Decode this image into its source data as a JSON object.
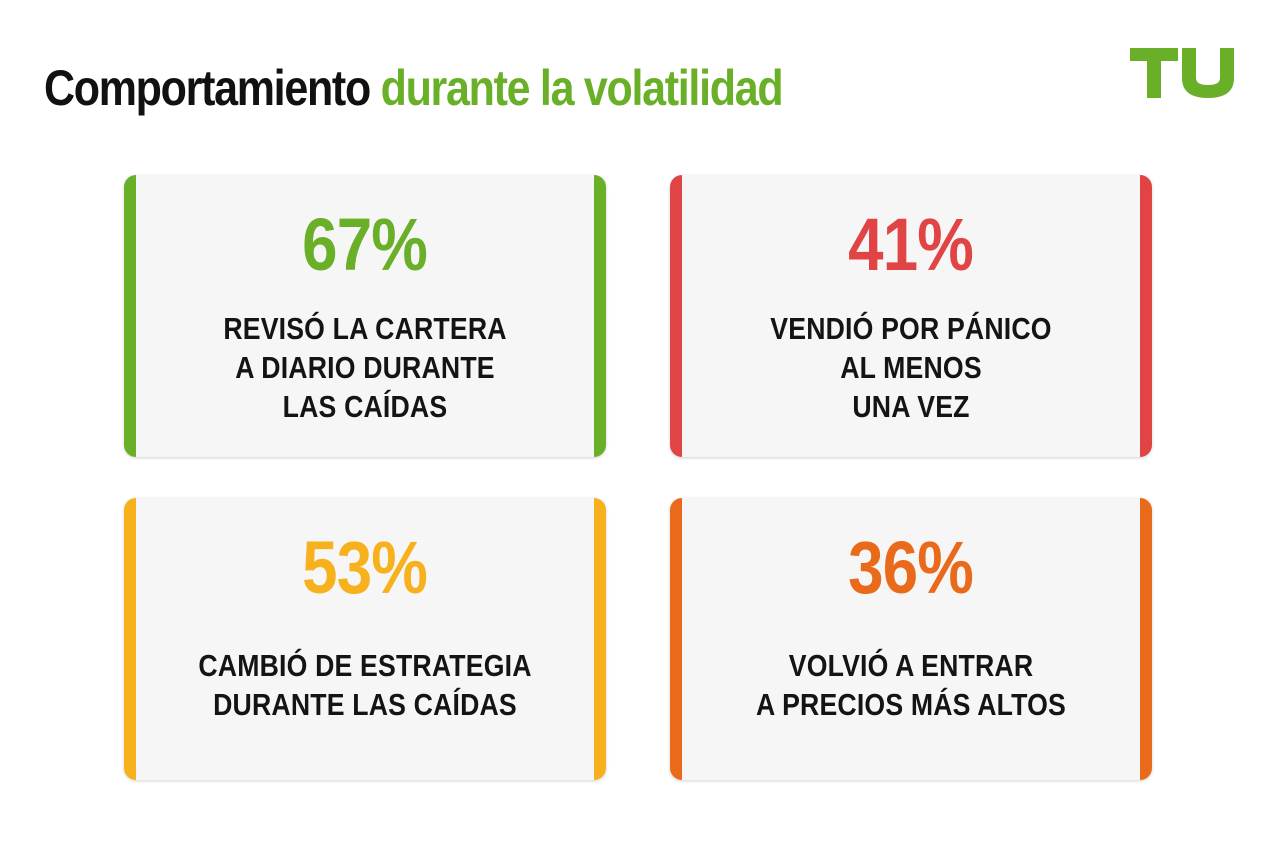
{
  "title": {
    "part1": "Comportamiento",
    "part2": "durante la volatilidad"
  },
  "logo": {
    "text": "TU",
    "icon": "tu-logo",
    "color": "#6aaf28"
  },
  "cards": [
    {
      "percent": "67%",
      "lines": [
        "REVISÓ LA CARTERA",
        "A DIARIO DURANTE",
        "LAS CAÍDAS"
      ],
      "color": "#6aaf28"
    },
    {
      "percent": "41%",
      "lines": [
        "VENDIÓ POR PÁNICO",
        "AL MENOS",
        "UNA VEZ"
      ],
      "color": "#e04444"
    },
    {
      "percent": "53%",
      "lines": [
        "CAMBIÓ DE ESTRATEGIA",
        "DURANTE LAS CAÍDAS"
      ],
      "color": "#f6b11c"
    },
    {
      "percent": "36%",
      "lines": [
        "VOLVIÓ A ENTRAR",
        "A PRECIOS MÁS ALTOS"
      ],
      "color": "#ea6a1c"
    }
  ]
}
